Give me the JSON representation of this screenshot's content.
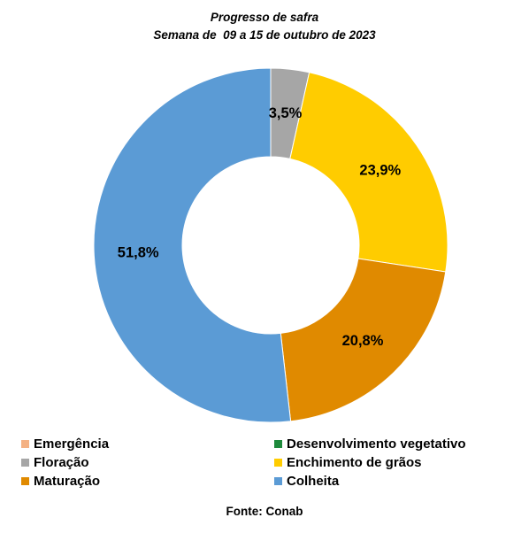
{
  "chart_data": {
    "type": "pie",
    "donut": true,
    "title": "Progresso de safra",
    "subtitle": "Semana de  09 a 15 de outubro de 2023",
    "categories": [
      "Emergência",
      "Desenvolvimento vegetativo",
      "Floração",
      "Enchimento de grãos",
      "Maturação",
      "Colheita"
    ],
    "values": [
      0,
      0,
      3.5,
      23.9,
      20.8,
      51.8
    ],
    "data_labels": [
      "",
      "",
      "3,5%",
      "23,9%",
      "20,8%",
      "51,8%"
    ],
    "colors": [
      "#F4B183",
      "#1E8A3C",
      "#A6A6A6",
      "#FFCC00",
      "#E08A00",
      "#5B9BD5"
    ],
    "legend_position": "bottom",
    "unit": "%"
  },
  "source": "Fonte: Conab"
}
